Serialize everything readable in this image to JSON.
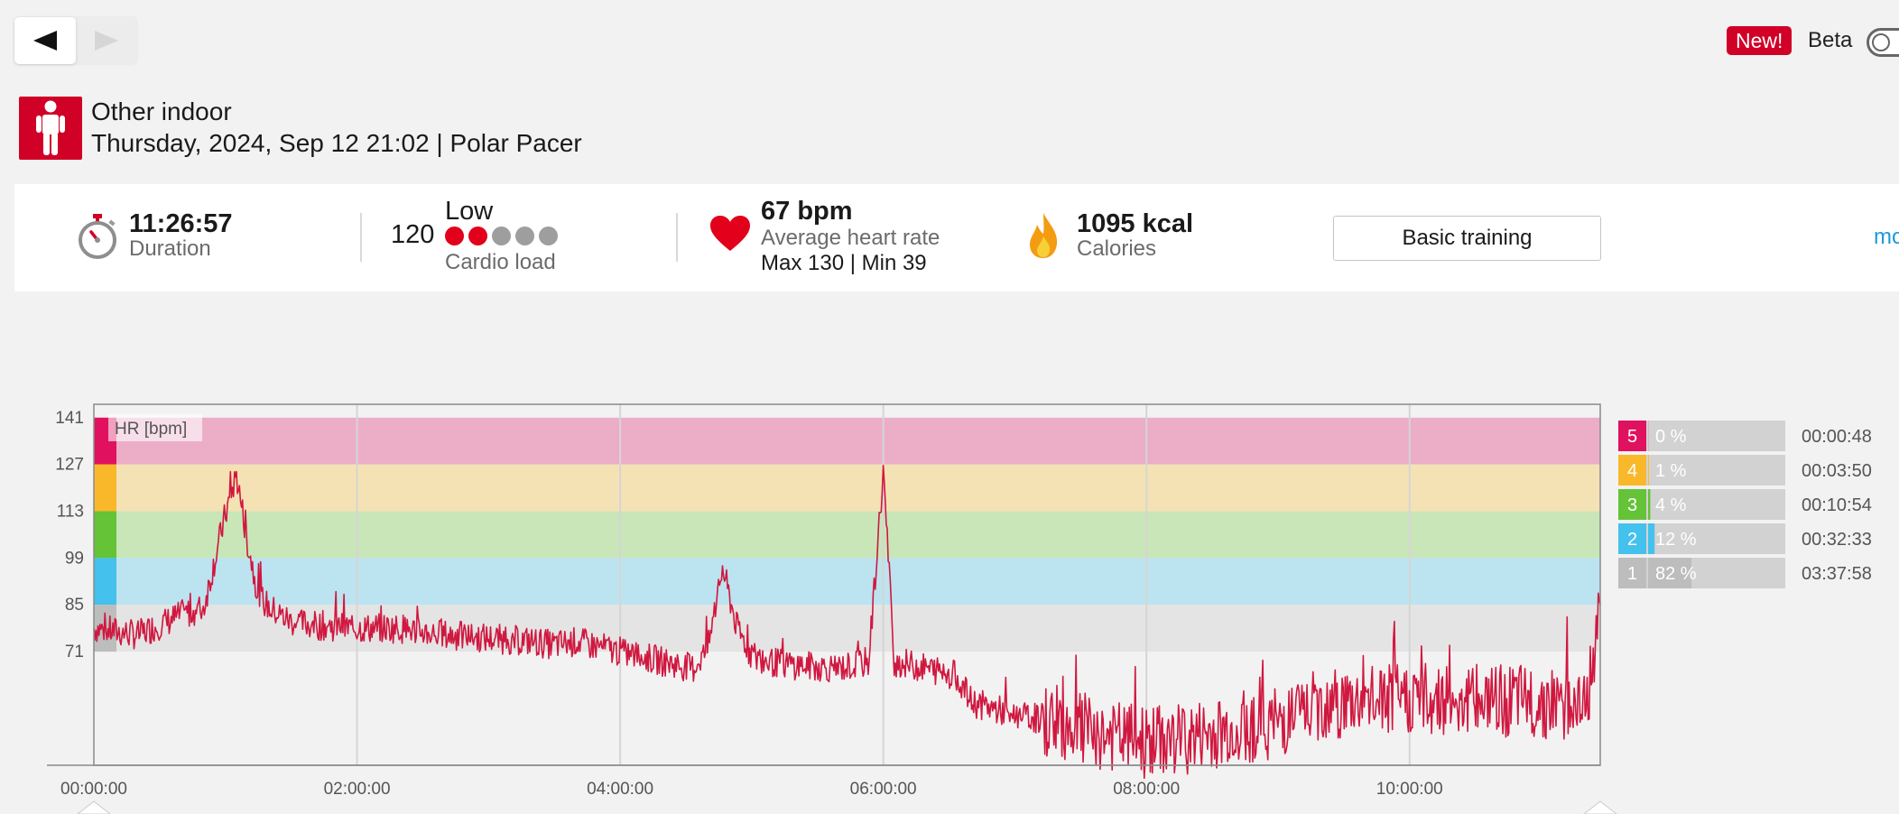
{
  "nav": {
    "back_icon": "triangle-left-icon",
    "forward_icon": "triangle-right-icon"
  },
  "top_right": {
    "new_badge": "New!",
    "beta_label": "Beta",
    "beta_enabled": false
  },
  "activity": {
    "sport_icon": "person-standing-icon",
    "sport_name": "Other indoor",
    "date_device": "Thursday, 2024, Sep 12 21:02 | Polar Pacer"
  },
  "summary": {
    "duration_value": "11:26:57",
    "duration_label": "Duration",
    "cardio_load_value": "120",
    "cardio_load_level": "Low",
    "cardio_load_label": "Cardio load",
    "cardio_load_dots_filled": 2,
    "cardio_load_dots_total": 5,
    "avg_hr_value": "67 bpm",
    "avg_hr_label": "Average heart rate",
    "hr_max_min": "Max 130  |  Min 39",
    "calories_value": "1095 kcal",
    "calories_label": "Calories",
    "training_button": "Basic training",
    "more_link": "mo"
  },
  "colors": {
    "brand_red": "#d10027",
    "hr_line": "#d0173f",
    "link_blue": "#1a9ad6",
    "dot_on": "#e2001a",
    "dot_off": "#9e9e9e"
  },
  "chart_data": {
    "type": "line",
    "title": "",
    "series_label": "HR [bpm]",
    "xlabel": "",
    "ylabel": "",
    "x_ticks": [
      "00:00:00",
      "02:00:00",
      "04:00:00",
      "06:00:00",
      "08:00:00",
      "10:00:00"
    ],
    "x_tick_seconds": [
      0,
      7200,
      14400,
      21600,
      28800,
      36000
    ],
    "xlim_seconds": [
      0,
      41217
    ],
    "y_ticks": [
      141,
      127,
      113,
      99,
      85,
      71
    ],
    "ylim": [
      37,
      145
    ],
    "grid": true,
    "zones": [
      {
        "zone": "5",
        "percent": "0 %",
        "time": "00:00:48",
        "fraction": 0.001,
        "min": 127,
        "max": 141,
        "band_color": "#ecaec7",
        "key_color": "#e0115f"
      },
      {
        "zone": "4",
        "percent": "1 %",
        "time": "00:03:50",
        "fraction": 0.006,
        "min": 113,
        "max": 127,
        "band_color": "#f5e2b4",
        "key_color": "#f9b82a"
      },
      {
        "zone": "3",
        "percent": "4 %",
        "time": "00:10:54",
        "fraction": 0.016,
        "min": 99,
        "max": 113,
        "band_color": "#c8e6b8",
        "key_color": "#64c337"
      },
      {
        "zone": "2",
        "percent": "12 %",
        "time": "00:32:33",
        "fraction": 0.047,
        "min": 85,
        "max": 99,
        "band_color": "#bce3f0",
        "key_color": "#44c1ec"
      },
      {
        "zone": "1",
        "percent": "82 %",
        "time": "03:37:58",
        "fraction": 0.317,
        "min": 71,
        "max": 85,
        "band_color": "#e4e4e4",
        "key_color": "#bdbdbd"
      }
    ],
    "series": [
      {
        "name": "HR [bpm]",
        "x_seconds": [
          0,
          1200,
          2400,
          3000,
          3300,
          3600,
          3900,
          4200,
          4500,
          4800,
          5400,
          6000,
          7200,
          8400,
          9600,
          10800,
          12000,
          12600,
          13200,
          14400,
          15600,
          16400,
          16800,
          17200,
          17600,
          18000,
          18400,
          19200,
          20400,
          21200,
          21600,
          21900,
          22800,
          23600,
          24000,
          25200,
          26400,
          27600,
          28200,
          28800,
          30000,
          31200,
          32400,
          33600,
          34800,
          36000,
          37200,
          38400,
          39600,
          40500,
          40900,
          41217
        ],
        "values": [
          78,
          76,
          82,
          84,
          98,
          112,
          124,
          104,
          88,
          84,
          80,
          79,
          78,
          78,
          76,
          75,
          74,
          73,
          74,
          71,
          68,
          66,
          72,
          96,
          78,
          70,
          68,
          67,
          66,
          68,
          125,
          68,
          66,
          64,
          56,
          52,
          50,
          46,
          45,
          44,
          45,
          48,
          50,
          55,
          56,
          57,
          57,
          56,
          56,
          55,
          58,
          83
        ]
      }
    ]
  }
}
